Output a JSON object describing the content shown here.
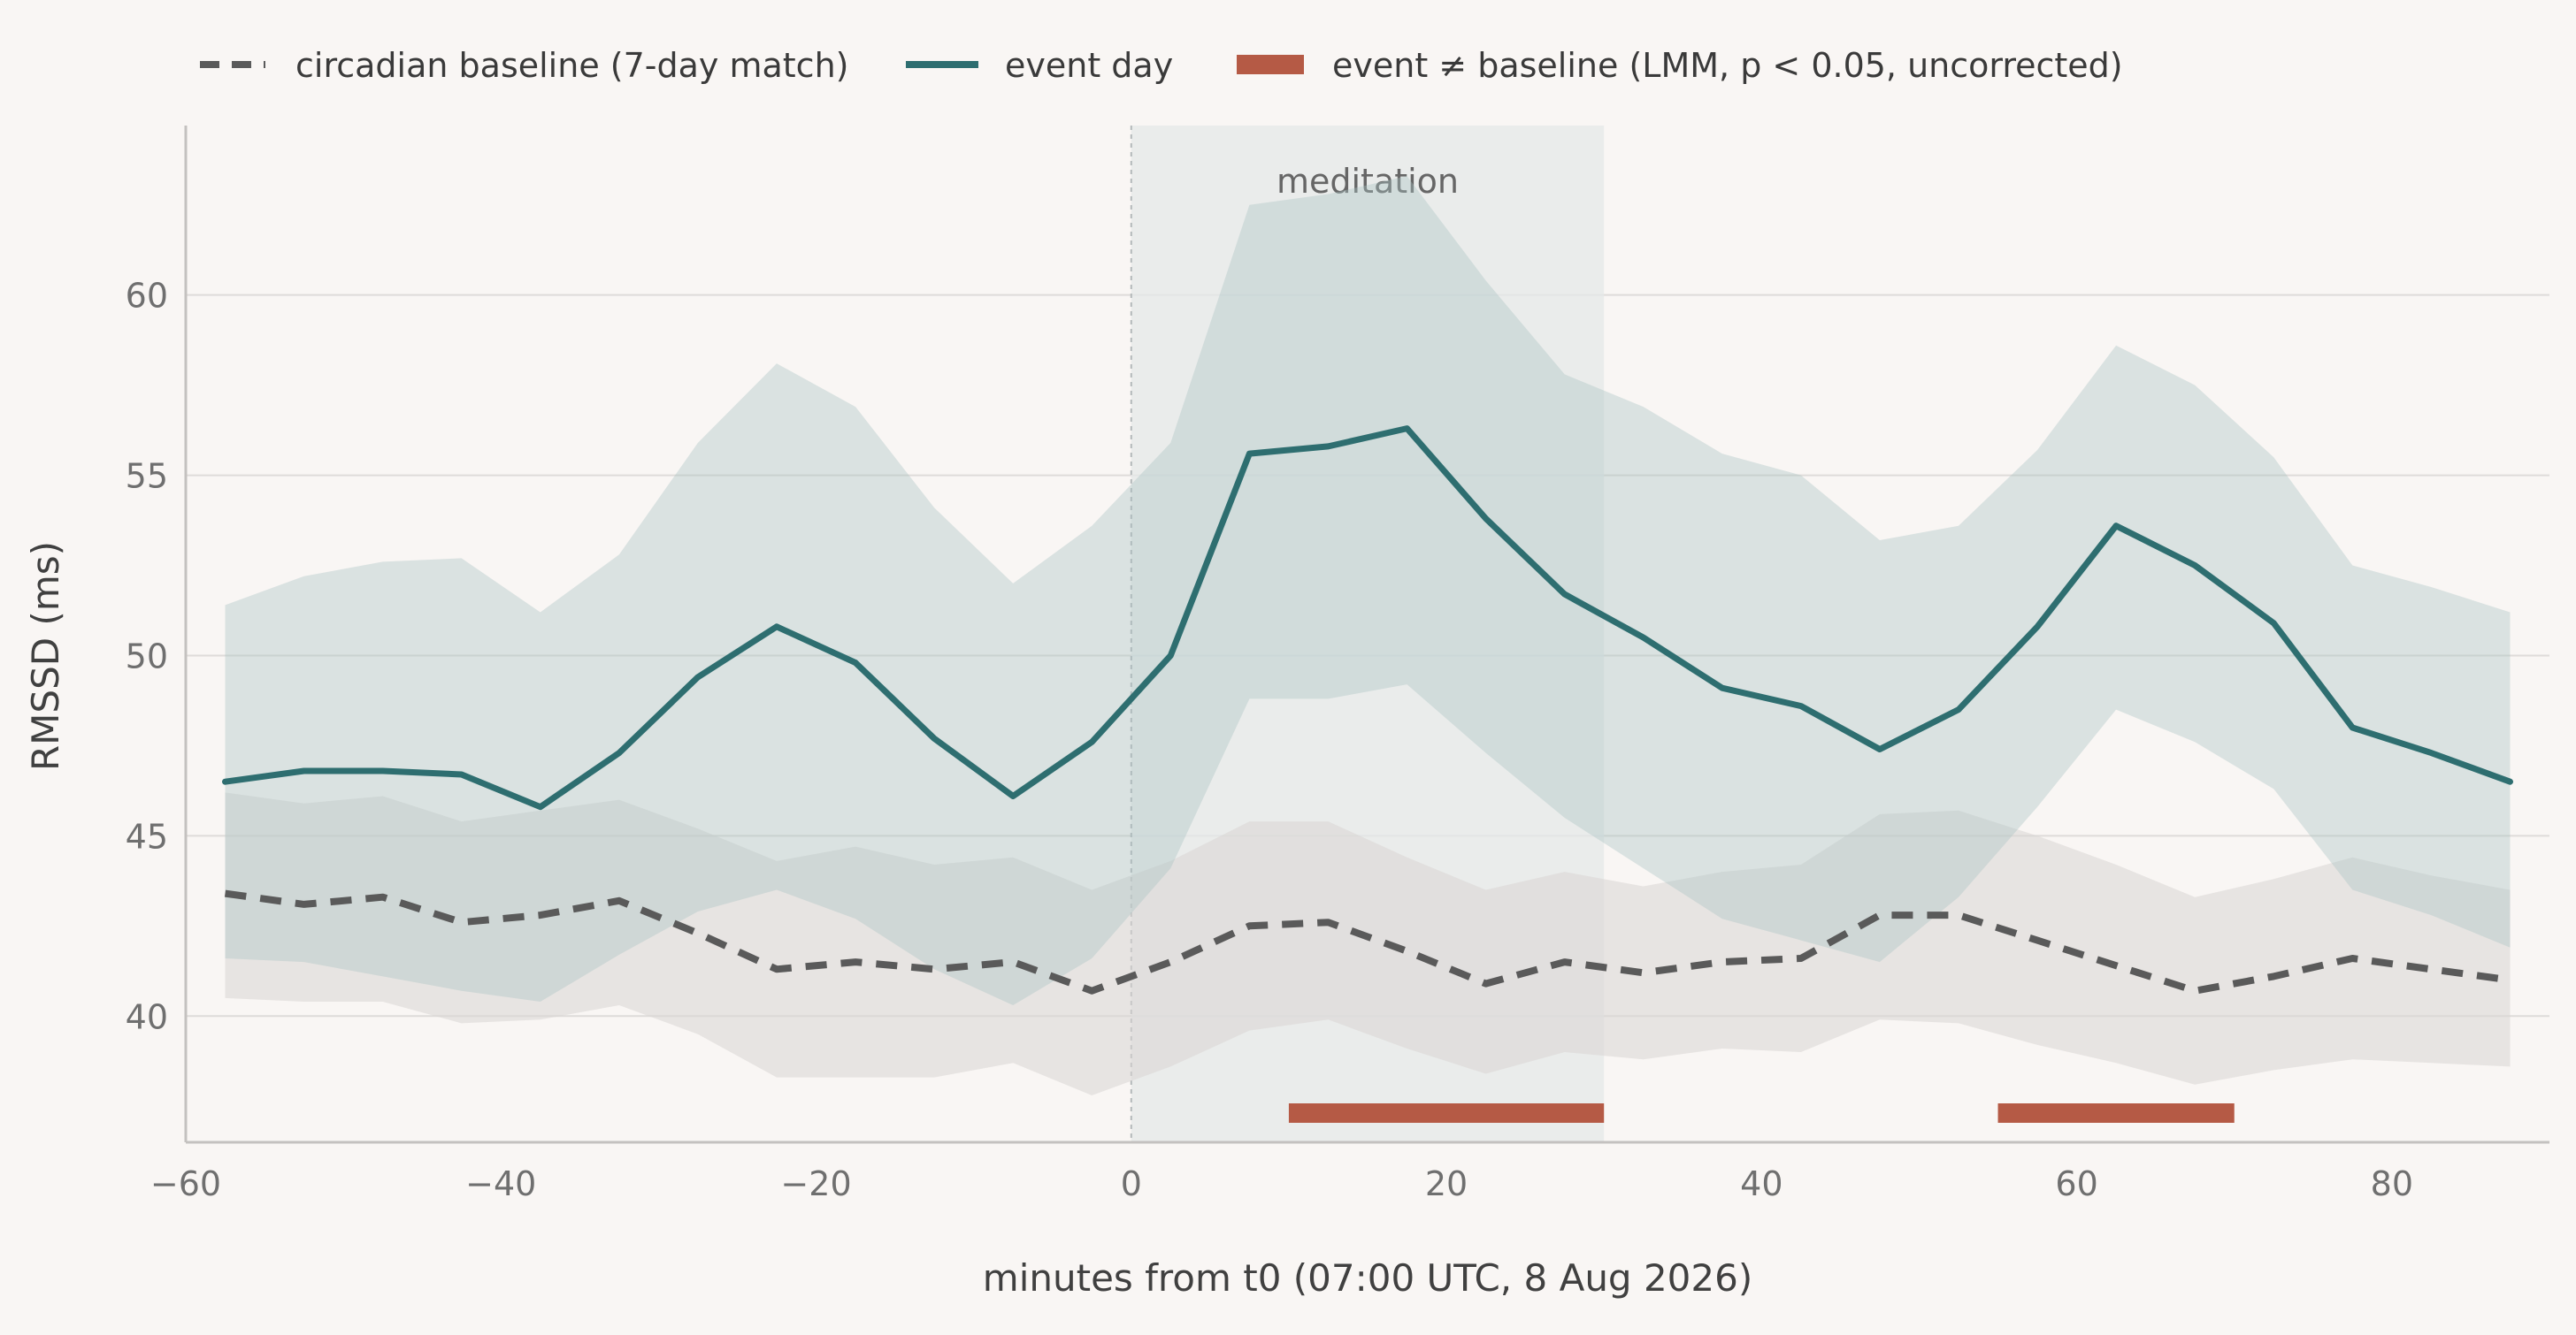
{
  "chart_data": {
    "type": "line",
    "xlabel": "minutes from t0 (07:00 UTC, 8 Aug 2026)",
    "ylabel": "RMSSD (ms)",
    "xlim": [
      -60,
      90
    ],
    "ylim": [
      36.5,
      64.7
    ],
    "x_ticks": [
      -60,
      -40,
      -20,
      0,
      20,
      40,
      60,
      80
    ],
    "x_tick_labels": [
      "−60",
      "−40",
      "−20",
      "0",
      "20",
      "40",
      "60",
      "80"
    ],
    "y_ticks": [
      40,
      45,
      50,
      55,
      60
    ],
    "y_tick_labels": [
      "40",
      "45",
      "50",
      "55",
      "60"
    ],
    "grid": "horizontal",
    "legend_position": "top",
    "x": [
      -57.5,
      -52.5,
      -47.5,
      -42.5,
      -37.5,
      -32.5,
      -27.5,
      -22.5,
      -17.5,
      -12.5,
      -7.5,
      -2.5,
      2.5,
      7.5,
      12.5,
      17.5,
      22.5,
      27.5,
      32.5,
      37.5,
      42.5,
      47.5,
      52.5,
      57.5,
      62.5,
      67.5,
      72.5,
      77.5,
      82.5,
      87.5
    ],
    "series": [
      {
        "name": "circadian baseline (7-day match)",
        "style": "dashed",
        "color": "#5a5a5a",
        "values": [
          43.4,
          43.1,
          43.3,
          42.6,
          42.8,
          43.2,
          42.3,
          41.3,
          41.5,
          41.3,
          41.5,
          40.7,
          41.5,
          42.5,
          42.6,
          41.8,
          40.9,
          41.5,
          41.2,
          41.5,
          41.6,
          42.8,
          42.8,
          42.1,
          41.4,
          40.7,
          41.1,
          41.6,
          41.3,
          41.0
        ],
        "band_lower": [
          40.5,
          40.4,
          40.4,
          39.8,
          39.9,
          40.3,
          39.5,
          38.3,
          38.3,
          38.3,
          38.7,
          37.8,
          38.6,
          39.6,
          39.9,
          39.1,
          38.4,
          39.0,
          38.8,
          39.1,
          39.0,
          39.9,
          39.8,
          39.2,
          38.7,
          38.1,
          38.5,
          38.8,
          38.7,
          38.6
        ],
        "band_upper": [
          46.2,
          45.9,
          46.1,
          45.4,
          45.7,
          46.0,
          45.2,
          44.3,
          44.7,
          44.2,
          44.4,
          43.5,
          44.3,
          45.4,
          45.4,
          44.4,
          43.5,
          44.0,
          43.6,
          44.0,
          44.2,
          45.6,
          45.7,
          45.0,
          44.2,
          43.3,
          43.8,
          44.4,
          43.9,
          43.5
        ]
      },
      {
        "name": "event day",
        "style": "solid",
        "color": "#2e6e70",
        "values": [
          46.5,
          46.8,
          46.8,
          46.7,
          45.8,
          47.3,
          49.4,
          50.8,
          49.8,
          47.7,
          46.1,
          47.6,
          50.0,
          55.6,
          55.8,
          56.3,
          53.8,
          51.7,
          50.5,
          49.1,
          48.6,
          47.4,
          48.5,
          50.8,
          53.6,
          52.5,
          50.9,
          48.0,
          47.3,
          46.5
        ],
        "band_lower": [
          41.6,
          41.5,
          41.1,
          40.7,
          40.4,
          41.7,
          42.9,
          43.5,
          42.7,
          41.3,
          40.3,
          41.6,
          44.1,
          48.8,
          48.8,
          49.2,
          47.3,
          45.5,
          44.1,
          42.7,
          42.1,
          41.5,
          43.3,
          45.8,
          48.5,
          47.6,
          46.3,
          43.5,
          42.8,
          41.9
        ],
        "band_upper": [
          51.4,
          52.2,
          52.6,
          52.7,
          51.2,
          52.8,
          55.9,
          58.1,
          56.9,
          54.1,
          52.0,
          53.6,
          55.9,
          62.5,
          62.8,
          63.3,
          60.4,
          57.8,
          56.9,
          55.6,
          55.0,
          53.2,
          53.6,
          55.7,
          58.6,
          57.5,
          55.5,
          52.5,
          51.9,
          51.2
        ]
      }
    ],
    "shaded_regions": [
      {
        "label": "meditation",
        "x_start": 0,
        "x_end": 30
      }
    ],
    "significance_legend": "event ≠ baseline (LMM, p < 0.05, uncorrected)",
    "significant_intervals": [
      {
        "x_start": 10,
        "x_end": 30
      },
      {
        "x_start": 55,
        "x_end": 70
      }
    ],
    "colors": {
      "background": "#f9f6f4",
      "event_line": "#2e6e70",
      "event_band": "#a9c3c3",
      "baseline_line": "#5a5a5a",
      "baseline_band": "#d9d6d3",
      "significance": "#b55a45",
      "meditation_shade": "#e4e8e8",
      "grid": "#dedbd9"
    }
  }
}
